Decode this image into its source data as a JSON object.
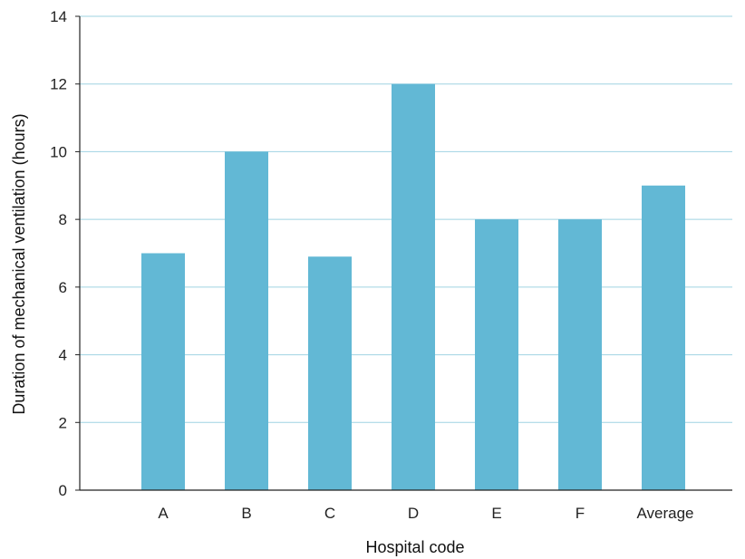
{
  "chart_data": {
    "type": "bar",
    "categories": [
      "A",
      "B",
      "C",
      "D",
      "E",
      "F",
      "Average"
    ],
    "values": [
      7,
      10,
      6.9,
      12,
      8,
      8,
      9
    ],
    "xlabel": "Hospital code",
    "ylabel": "Duration of mechanical ventilation (hours)",
    "ylim": [
      0,
      14
    ],
    "yticks": [
      0,
      2,
      4,
      6,
      8,
      10,
      12,
      14
    ],
    "grid": true,
    "colors": {
      "bar": "#62b8d5",
      "grid": "#9fd3e2",
      "axis": "#222222"
    }
  }
}
